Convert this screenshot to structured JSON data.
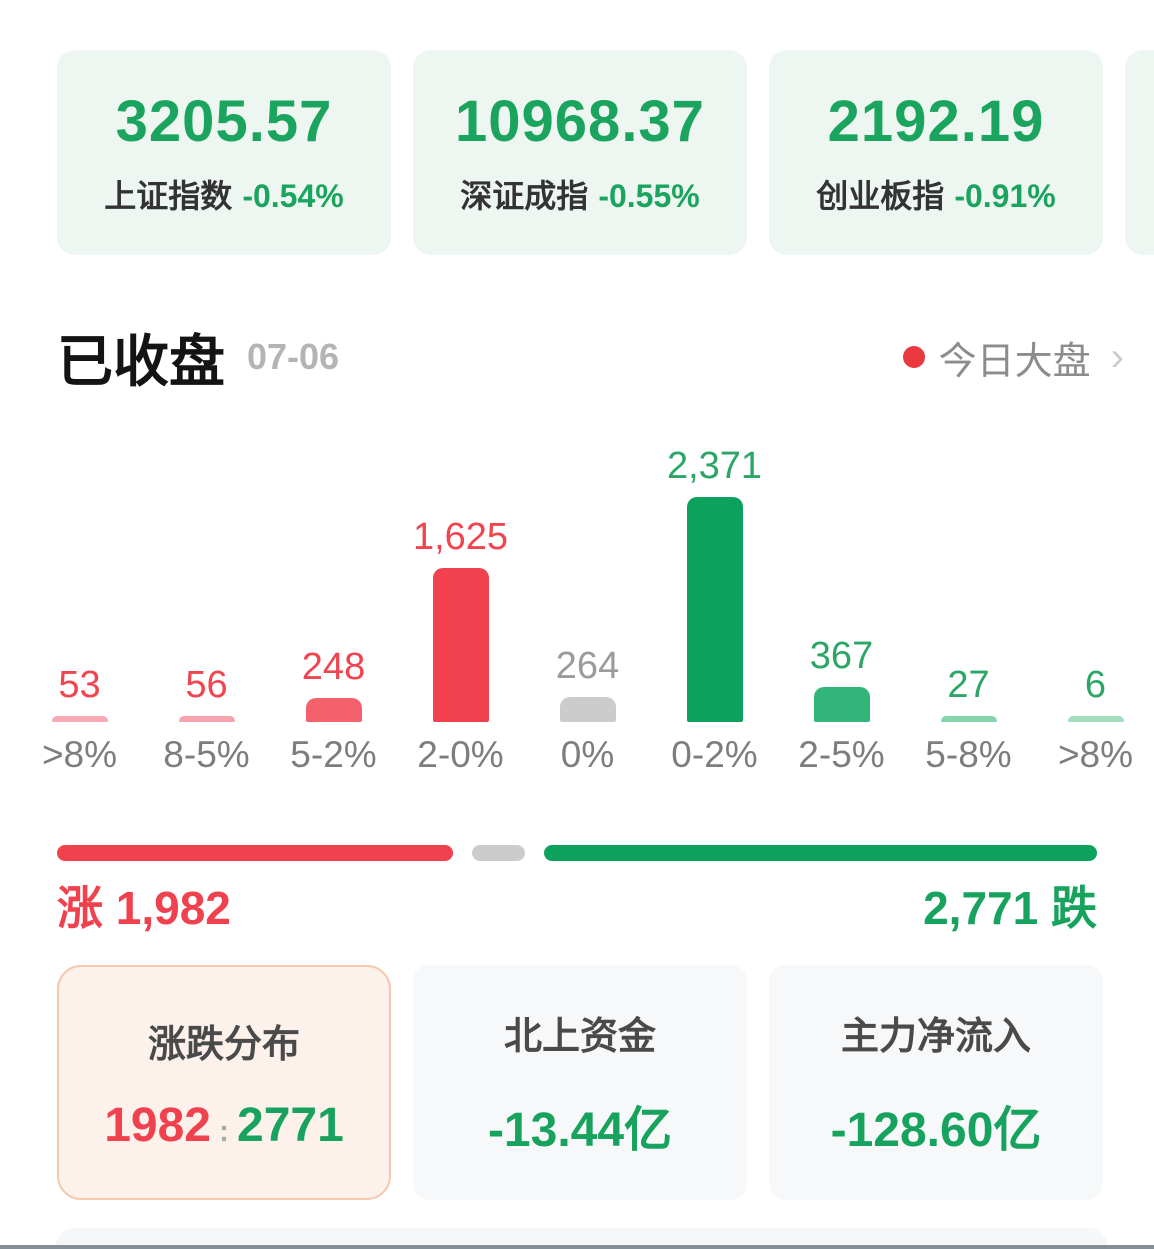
{
  "indices": [
    {
      "value": "3205.57",
      "name": "上证指数",
      "change": "-0.54%"
    },
    {
      "value": "10968.37",
      "name": "深证成指",
      "change": "-0.55%"
    },
    {
      "value": "2192.19",
      "name": "创业板指",
      "change": "-0.91%"
    }
  ],
  "market_status": {
    "title": "已收盘",
    "date": "07-06",
    "link_label": "今日大盘",
    "chevron": "›"
  },
  "chart_data": {
    "type": "bar",
    "title": "涨跌分布",
    "categories": [
      ">8%",
      "8-5%",
      "5-2%",
      "2-0%",
      "0%",
      "0-2%",
      "2-5%",
      "5-8%",
      ">8%"
    ],
    "values": [
      53,
      56,
      248,
      1625,
      264,
      2371,
      367,
      27,
      6
    ],
    "value_labels": [
      "53",
      "56",
      "248",
      "1,625",
      "264",
      "2,371",
      "367",
      "27",
      "6"
    ],
    "bar_colors": [
      "#f8aab4",
      "#f8a4ae",
      "#f4616d",
      "#f1414f",
      "#cccccc",
      "#0ca15d",
      "#33b478",
      "#85d4ab",
      "#a0ddbd"
    ],
    "label_colors": [
      "#f0454f",
      "#f0454f",
      "#f0454f",
      "#f0454f",
      "#9b9b9b",
      "#2ba667",
      "#2ba667",
      "#2ba667",
      "#2ba667"
    ],
    "ylim": [
      0,
      2371
    ],
    "grid": false,
    "legend": false
  },
  "advance_decline": {
    "up_label": "涨",
    "up_text": "涨 1,982",
    "down_text": "2,771 跌",
    "down_label": "跌",
    "up_count": 1982,
    "neutral_count": 264,
    "down_count": 2771
  },
  "summary_cards": {
    "distribution": {
      "title": "涨跌分布",
      "up_value": "1982",
      "separator": ":",
      "down_value": "2771"
    },
    "northbound": {
      "title": "北上资金",
      "value": "-13.44亿"
    },
    "main_inflow": {
      "title": "主力净流入",
      "value": "-128.60亿"
    }
  },
  "colors": {
    "up_red": "#f1414f",
    "down_green": "#0ca15d",
    "index_green": "#1ba45e",
    "neutral_gray": "#cccccc",
    "card_mint": "#edf6f1",
    "card_gray": "#f7f8f9",
    "active_card_bg": "#fdf1ec",
    "active_card_border": "#f6c8ae"
  }
}
